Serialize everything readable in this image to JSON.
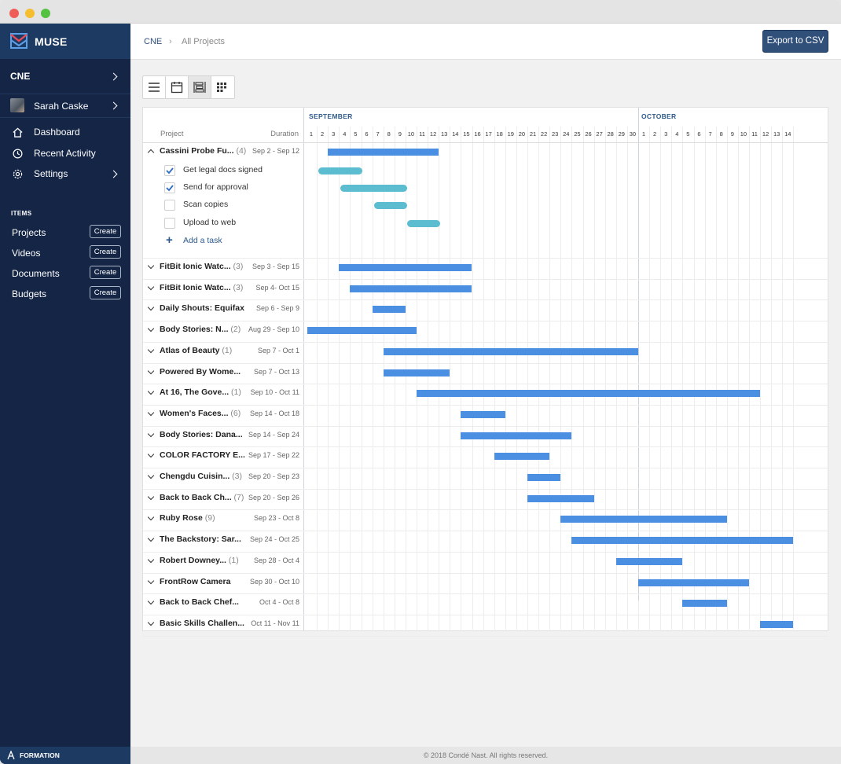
{
  "app": {
    "name": "MUSE",
    "footer": "FORMATION",
    "copyright": "© 2018 Condé Nast. All rights reserved."
  },
  "colors": {
    "sidebar": "#142546",
    "bar": "#4a8fe2",
    "task_bar": "#5cbcd0",
    "accent": "#30507a"
  },
  "sidebar": {
    "org": "CNE",
    "user": "Sarah Caske",
    "nav": [
      {
        "label": "Dashboard",
        "icon": "home-icon"
      },
      {
        "label": "Recent Activity",
        "icon": "clock-icon"
      },
      {
        "label": "Settings",
        "icon": "gear-icon"
      }
    ],
    "items_heading": "ITEMS",
    "items": [
      {
        "label": "Projects",
        "action": "Create"
      },
      {
        "label": "Videos",
        "action": "Create"
      },
      {
        "label": "Documents",
        "action": "Create"
      },
      {
        "label": "Budgets",
        "action": "Create"
      }
    ]
  },
  "header": {
    "breadcrumb": [
      "CNE",
      "All Projects"
    ],
    "export_label": "Export to CSV"
  },
  "view_modes": [
    "list-view-icon",
    "calendar-view-icon",
    "gantt-view-icon",
    "grid-view-icon"
  ],
  "gantt": {
    "col_project": "Project",
    "col_duration": "Duration",
    "months": [
      {
        "name": "SEPTEMBER",
        "days": [
          "1",
          "2",
          "3",
          "4",
          "5",
          "6",
          "7",
          "8",
          "9",
          "10",
          "11",
          "12",
          "13",
          "14",
          "15",
          "16",
          "17",
          "18",
          "19",
          "20",
          "21",
          "22",
          "23",
          "24",
          "25",
          "26",
          "27",
          "28",
          "29",
          "30"
        ]
      },
      {
        "name": "OCTOBER",
        "days": [
          "1",
          "2",
          "3",
          "4",
          "5",
          "6",
          "7",
          "8",
          "9",
          "10",
          "11",
          "12",
          "13",
          "14"
        ]
      }
    ],
    "add_task": "Add a task",
    "projects": [
      {
        "name": "Cassini Probe Fu...",
        "count": "(4)",
        "duration": "Sep 2 - Sep 12",
        "expanded": true,
        "start": 2,
        "end": 12,
        "tasks": [
          {
            "label": "Get legal docs signed",
            "checked": true,
            "start": 1,
            "end": 5
          },
          {
            "label": "Send for approval",
            "checked": true,
            "start": 3,
            "end": 9
          },
          {
            "label": "Scan copies",
            "checked": false,
            "start": 6,
            "end": 9
          },
          {
            "label": "Upload to web",
            "checked": false,
            "start": 9,
            "end": 12
          }
        ]
      },
      {
        "name": "FitBit Ionic Watc...",
        "count": "(3)",
        "duration": "Sep 3 - Sep 15",
        "start": 3,
        "end": 15
      },
      {
        "name": "FitBit Ionic Watc...",
        "count": "(3)",
        "duration": "Sep 4- Oct 15",
        "start": 4,
        "end": 15
      },
      {
        "name": "Daily Shouts: Equifax",
        "count": "",
        "duration": "Sep 6 - Sep 9",
        "start": 6,
        "end": 9
      },
      {
        "name": "Body Stories: N...",
        "count": "(2)",
        "duration": "Aug 29 - Sep 10",
        "start": 0,
        "end": 10
      },
      {
        "name": "Atlas of Beauty",
        "count": "(1)",
        "duration": "Sep 7 - Oct 1",
        "start": 7,
        "end": 30
      },
      {
        "name": "Powered By Wome...",
        "count": "",
        "duration": "Sep 7 - Oct 13",
        "start": 7,
        "end": 13
      },
      {
        "name": "At 16, The Gove...",
        "count": "(1)",
        "duration": "Sep 10 - Oct 11",
        "start": 10,
        "end": 41
      },
      {
        "name": "Women's Faces...",
        "count": "(6)",
        "duration": "Sep 14 - Oct 18",
        "start": 14,
        "end": 18
      },
      {
        "name": "Body Stories: Dana...",
        "count": "",
        "duration": "Sep 14 - Sep 24",
        "start": 14,
        "end": 24
      },
      {
        "name": "COLOR FACTORY E...",
        "count": "",
        "duration": "Sep 17 - Sep 22",
        "start": 17,
        "end": 22
      },
      {
        "name": "Chengdu Cuisin...",
        "count": "(3)",
        "duration": "Sep 20 - Sep 23",
        "start": 20,
        "end": 23
      },
      {
        "name": "Back to Back Ch...",
        "count": "(7)",
        "duration": "Sep 20 - Sep 26",
        "start": 20,
        "end": 26
      },
      {
        "name": "Ruby Rose",
        "count": "(9)",
        "duration": "Sep 23 - Oct 8",
        "start": 23,
        "end": 38
      },
      {
        "name": "The Backstory: Sar...",
        "count": "",
        "duration": "Sep 24 - Oct 25",
        "start": 24,
        "end": 45
      },
      {
        "name": "Robert Downey...",
        "count": "(1)",
        "duration": "Sep 28 - Oct 4",
        "start": 28,
        "end": 34
      },
      {
        "name": "FrontRow Camera",
        "count": "",
        "duration": "Sep 30 - Oct 10",
        "start": 30,
        "end": 40
      },
      {
        "name": "Back to Back Chef...",
        "count": "",
        "duration": "Oct 4 - Oct 8",
        "start": 34,
        "end": 38
      },
      {
        "name": "Basic Skills Challen...",
        "count": "",
        "duration": "Oct 11 - Nov 11",
        "start": 41,
        "end": 45
      }
    ]
  }
}
